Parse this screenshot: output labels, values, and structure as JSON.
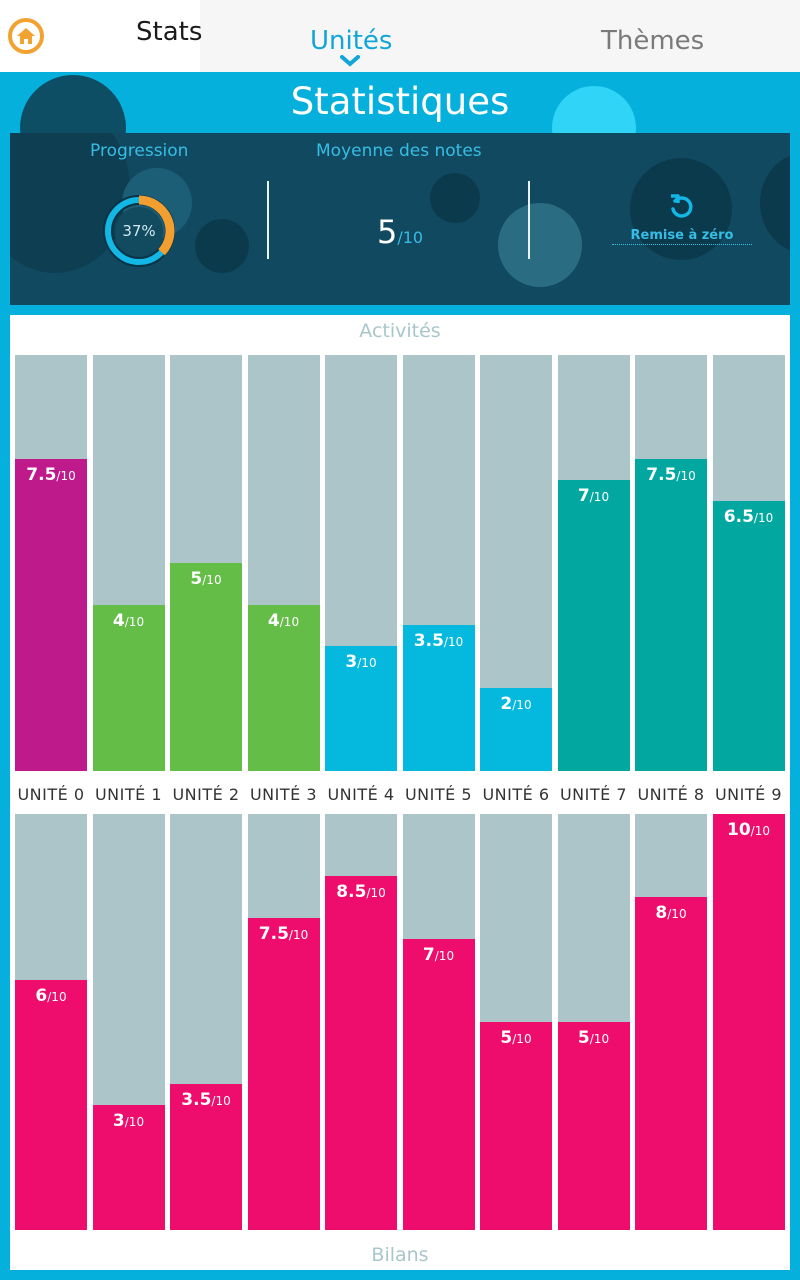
{
  "nav": {
    "stats_label": "Stats",
    "unites_label": "Unités",
    "themes_label": "Thèmes"
  },
  "header": {
    "title": "Statistiques",
    "progression_label": "Progression",
    "progression_value": "37%",
    "progression_fraction": 0.37,
    "moyenne_label": "Moyenne des notes",
    "moyenne_value": "5",
    "moyenne_denom": "/10",
    "reset_label": "Remise à zéro"
  },
  "colors": {
    "accent": "#12a6d8",
    "background": "#06b0dc",
    "bar_bg": "#abc5c9",
    "magenta": "#be1a8c",
    "green": "#63bd47",
    "blue": "#04b8de",
    "teal": "#02a8a0",
    "pink": "#ee0c6c"
  },
  "chart_data": [
    {
      "type": "bar",
      "title": "Activités",
      "categories": [
        "UNITÉ 0",
        "UNITÉ 1",
        "UNITÉ 2",
        "UNITÉ 3",
        "UNITÉ 4",
        "UNITÉ 5",
        "UNITÉ 6",
        "UNITÉ 7",
        "UNITÉ 8",
        "UNITÉ 9"
      ],
      "values": [
        7.5,
        4,
        5,
        4,
        3,
        3.5,
        2,
        7,
        7.5,
        6.5
      ],
      "value_labels": [
        "7.5",
        "4",
        "5",
        "4",
        "3",
        "3.5",
        "2",
        "7",
        "7.5",
        "6.5"
      ],
      "denom": "/10",
      "bar_colors": [
        "#be1a8c",
        "#63bd47",
        "#63bd47",
        "#63bd47",
        "#04b8de",
        "#04b8de",
        "#04b8de",
        "#02a8a0",
        "#02a8a0",
        "#02a8a0"
      ],
      "ylim": [
        0,
        10
      ]
    },
    {
      "type": "bar",
      "title": "Bilans",
      "categories": [
        "UNITÉ 0",
        "UNITÉ 1",
        "UNITÉ 2",
        "UNITÉ 3",
        "UNITÉ 4",
        "UNITÉ 5",
        "UNITÉ 6",
        "UNITÉ 7",
        "UNITÉ 8",
        "UNITÉ 9"
      ],
      "values": [
        6,
        3,
        3.5,
        7.5,
        8.5,
        7,
        5,
        5,
        8,
        10
      ],
      "value_labels": [
        "6",
        "3",
        "3.5",
        "7.5",
        "8.5",
        "7",
        "5",
        "5",
        "8",
        "10"
      ],
      "denom": "/10",
      "bar_colors": [
        "#ee0c6c",
        "#ee0c6c",
        "#ee0c6c",
        "#ee0c6c",
        "#ee0c6c",
        "#ee0c6c",
        "#ee0c6c",
        "#ee0c6c",
        "#ee0c6c",
        "#ee0c6c"
      ],
      "ylim": [
        0,
        10
      ]
    }
  ]
}
